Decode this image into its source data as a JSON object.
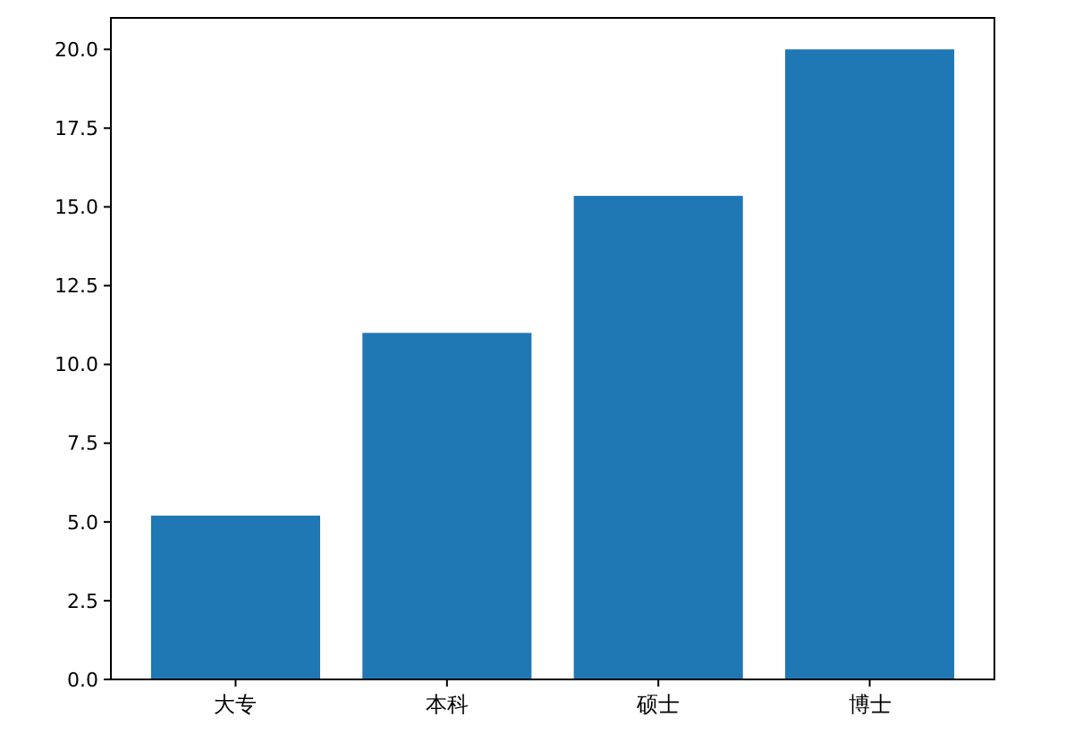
{
  "chart_data": {
    "type": "bar",
    "categories": [
      "大专",
      "本科",
      "硕士",
      "博士"
    ],
    "values": [
      5.2,
      11.0,
      15.35,
      20.0
    ],
    "color": "#1f77b4",
    "ylim": [
      0,
      21
    ],
    "yticks": [
      {
        "value": 0,
        "label": "0.0"
      },
      {
        "value": 2.5,
        "label": "2.5"
      },
      {
        "value": 5,
        "label": "5.0"
      },
      {
        "value": 7.5,
        "label": "7.5"
      },
      {
        "value": 10,
        "label": "10.0"
      },
      {
        "value": 12.5,
        "label": "12.5"
      },
      {
        "value": 15,
        "label": "15.0"
      },
      {
        "value": 17.5,
        "label": "17.5"
      },
      {
        "value": 20,
        "label": "20.0"
      }
    ],
    "grid": false
  }
}
